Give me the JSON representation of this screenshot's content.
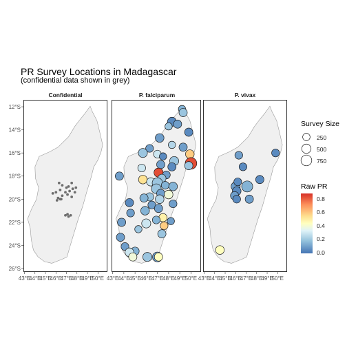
{
  "title": "PR Survey Locations in Madagascar",
  "subtitle": "(confidential data shown in grey)",
  "panels": [
    "Confidential",
    "P. falciparum",
    "P. vivax"
  ],
  "y_axis_labels": [
    "12°S",
    "14°S",
    "16°S",
    "18°S",
    "20°S",
    "22°S",
    "24°S",
    "26°S"
  ],
  "x_axis_labels": [
    "43°E",
    "44°E",
    "45°E",
    "46°E",
    "47°E",
    "48°E",
    "49°E",
    "50°E"
  ],
  "legend": {
    "size_title": "Survey Size",
    "size_labels": [
      "250",
      "500",
      "750"
    ],
    "color_title": "Raw PR",
    "color_labels": [
      "0.8",
      "0.6",
      "0.4",
      "0.2",
      "0.0"
    ]
  },
  "colors": {
    "land": "#f0f0f0",
    "coast": "#999999",
    "confidential_point": "#6e6e6e",
    "point_stroke": "#1a1a1a"
  },
  "map_data": {
    "confidential_points": [
      [
        47.0,
        -19.0
      ],
      [
        46.6,
        -18.8
      ],
      [
        46.4,
        -19.2
      ],
      [
        46.9,
        -19.4
      ],
      [
        47.3,
        -19.3
      ],
      [
        47.6,
        -19.1
      ],
      [
        46.6,
        -19.7
      ],
      [
        46.2,
        -19.9
      ],
      [
        46.4,
        -20.0
      ],
      [
        47.1,
        -19.6
      ],
      [
        47.5,
        -19.8
      ],
      [
        47.8,
        -19.4
      ],
      [
        47.9,
        -19.0
      ],
      [
        47.5,
        -18.6
      ],
      [
        46.0,
        -19.4
      ],
      [
        45.7,
        -19.5
      ],
      [
        46.3,
        -18.6
      ],
      [
        47.2,
        -18.9
      ],
      [
        46.1,
        -20.1
      ],
      [
        46.5,
        -20.0
      ],
      [
        47.4,
        -21.4
      ],
      [
        47.2,
        -21.5
      ],
      [
        47.1,
        -21.3
      ],
      [
        46.9,
        -21.4
      ]
    ],
    "falciparum_points": [
      [
        49.2,
        -12.2,
        200,
        0.15
      ],
      [
        49.3,
        -12.5,
        300,
        0.2
      ],
      [
        48.3,
        -13.3,
        400,
        0.05
      ],
      [
        48.8,
        -13.5,
        300,
        0.1
      ],
      [
        48.0,
        -13.7,
        200,
        0.2
      ],
      [
        49.8,
        -14.2,
        300,
        0.05
      ],
      [
        47.2,
        -14.7,
        350,
        0.1
      ],
      [
        48.3,
        -15.3,
        200,
        0.25
      ],
      [
        49.3,
        -15.5,
        300,
        0.1
      ],
      [
        46.3,
        -15.6,
        250,
        0.1
      ],
      [
        45.7,
        -16.0,
        400,
        0.2
      ],
      [
        47.0,
        -16.1,
        250,
        0.3
      ],
      [
        49.9,
        -16.1,
        350,
        0.6
      ],
      [
        47.5,
        -16.3,
        200,
        0.05
      ],
      [
        47.3,
        -17.0,
        300,
        0.1
      ],
      [
        48.5,
        -16.7,
        400,
        0.2
      ],
      [
        45.6,
        -17.3,
        250,
        0.3
      ],
      [
        48.3,
        -17.2,
        300,
        0.05
      ],
      [
        50.0,
        -16.9,
        800,
        0.85
      ],
      [
        49.8,
        -17.1,
        300,
        0.2
      ],
      [
        47.1,
        -17.7,
        400,
        0.85
      ],
      [
        47.8,
        -17.9,
        250,
        0.1
      ],
      [
        47.4,
        -18.2,
        300,
        0.2
      ],
      [
        43.6,
        -18.0,
        300,
        0.1
      ],
      [
        45.7,
        -18.3,
        350,
        0.55
      ],
      [
        46.4,
        -18.5,
        300,
        0.3
      ],
      [
        47.0,
        -18.6,
        600,
        0.2
      ],
      [
        47.7,
        -18.8,
        250,
        0.15
      ],
      [
        48.4,
        -18.9,
        350,
        0.15
      ],
      [
        46.9,
        -19.1,
        500,
        0.2
      ],
      [
        47.3,
        -19.5,
        300,
        0.1
      ],
      [
        46.3,
        -19.8,
        300,
        0.2
      ],
      [
        48.0,
        -19.6,
        350,
        0.4
      ],
      [
        45.8,
        -19.9,
        300,
        0.15
      ],
      [
        47.2,
        -20.0,
        350,
        0.25
      ],
      [
        44.5,
        -20.3,
        300,
        0.05
      ],
      [
        48.4,
        -20.4,
        250,
        0.1
      ],
      [
        46.5,
        -20.5,
        250,
        0.1
      ],
      [
        47.1,
        -20.8,
        300,
        0.1
      ],
      [
        45.9,
        -21.0,
        350,
        0.15
      ],
      [
        44.6,
        -21.2,
        250,
        0.1
      ],
      [
        47.5,
        -21.6,
        300,
        0.5
      ],
      [
        46.9,
        -21.8,
        250,
        0.15
      ],
      [
        48.2,
        -21.9,
        200,
        0.1
      ],
      [
        43.8,
        -22.0,
        300,
        0.1
      ],
      [
        46.0,
        -22.1,
        400,
        0.3
      ],
      [
        45.3,
        -22.6,
        200,
        0.2
      ],
      [
        47.6,
        -22.3,
        250,
        0.6
      ],
      [
        47.4,
        -23.0,
        300,
        0.2
      ],
      [
        43.7,
        -23.3,
        300,
        0.1
      ],
      [
        44.1,
        -24.1,
        250,
        0.1
      ],
      [
        45.0,
        -24.5,
        300,
        0.15
      ],
      [
        44.5,
        -24.6,
        350,
        0.3
      ],
      [
        44.8,
        -25.0,
        300,
        0.4
      ],
      [
        46.1,
        -25.0,
        400,
        0.2
      ],
      [
        47.0,
        -25.0,
        500,
        0.1
      ],
      [
        47.1,
        -25.0,
        300,
        0.45
      ]
    ],
    "vivax_points": [
      [
        46.3,
        -16.2,
        250,
        0.1
      ],
      [
        49.8,
        -16.0,
        250,
        0.05
      ],
      [
        46.7,
        -17.2,
        250,
        0.05
      ],
      [
        46.0,
        -18.9,
        400,
        0.1
      ],
      [
        46.2,
        -18.5,
        250,
        0.05
      ],
      [
        47.1,
        -18.9,
        700,
        0.15
      ],
      [
        46.1,
        -19.3,
        350,
        0.05
      ],
      [
        45.9,
        -19.7,
        300,
        0.1
      ],
      [
        48.3,
        -18.3,
        300,
        0.05
      ],
      [
        46.1,
        -20.0,
        250,
        0.05
      ],
      [
        47.3,
        -20.0,
        300,
        0.1
      ],
      [
        44.5,
        -24.4,
        350,
        0.45
      ]
    ]
  }
}
